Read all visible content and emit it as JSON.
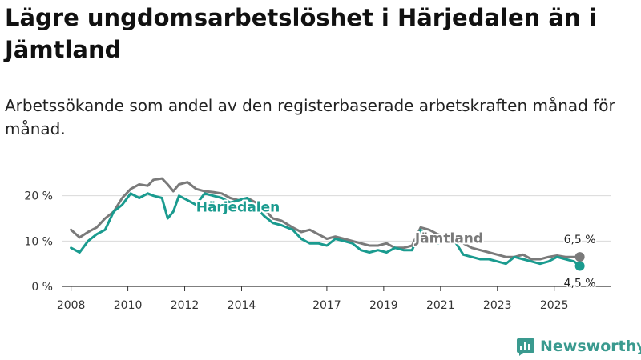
{
  "header": {
    "title": "Lägre ungdomsarbetslöshet i Härjedalen än i Jämtland",
    "subtitle": "Arbetssökande som andel av den registerbaserade arbetskraften månad för månad."
  },
  "brand": {
    "name": "Newsworthy",
    "color": "#3a9a8f"
  },
  "chart_data": {
    "type": "line",
    "title": "Lägre ungdomsarbetslöshet i Härjedalen än i Jämtland",
    "xlabel": "",
    "ylabel": "",
    "xlim": [
      2007.7,
      2026.7
    ],
    "ylim": [
      0,
      24
    ],
    "grid": true,
    "y_ticks": [
      {
        "value": 0,
        "label": "0 %"
      },
      {
        "value": 10,
        "label": "10 %"
      },
      {
        "value": 20,
        "label": "20 %"
      }
    ],
    "x_ticks": [
      {
        "value": 2008,
        "label": "2008"
      },
      {
        "value": 2010,
        "label": "2010"
      },
      {
        "value": 2012,
        "label": "2012"
      },
      {
        "value": 2014,
        "label": "2014"
      },
      {
        "value": 2017,
        "label": "2017"
      },
      {
        "value": 2019,
        "label": "2019"
      },
      {
        "value": 2021,
        "label": "2021"
      },
      {
        "value": 2023,
        "label": "2023"
      },
      {
        "value": 2025,
        "label": "2025"
      }
    ],
    "series": [
      {
        "name": "Jämtland",
        "color": "#7a7a7a",
        "label_at": {
          "x": 2020.1,
          "y": 9.6
        },
        "end_label": "6,5 %",
        "x": [
          2008.0,
          2008.3,
          2008.6,
          2008.9,
          2009.2,
          2009.5,
          2009.8,
          2010.1,
          2010.4,
          2010.7,
          2010.9,
          2011.2,
          2011.4,
          2011.6,
          2011.8,
          2012.1,
          2012.4,
          2012.7,
          2013.0,
          2013.3,
          2013.6,
          2013.9,
          2014.2,
          2014.5,
          2014.8,
          2015.1,
          2015.4,
          2015.8,
          2016.1,
          2016.4,
          2016.7,
          2017.0,
          2017.3,
          2017.6,
          2017.9,
          2018.2,
          2018.5,
          2018.8,
          2019.1,
          2019.4,
          2019.7,
          2020.0,
          2020.3,
          2020.6,
          2020.9,
          2021.2,
          2021.5,
          2021.8,
          2022.1,
          2022.4,
          2022.7,
          2023.0,
          2023.3,
          2023.6,
          2023.9,
          2024.2,
          2024.5,
          2024.8,
          2025.1,
          2025.4,
          2025.7,
          2025.9
        ],
        "values": [
          12.5,
          10.8,
          12.0,
          13.0,
          15.0,
          16.5,
          19.5,
          21.5,
          22.5,
          22.2,
          23.5,
          23.8,
          22.5,
          21.0,
          22.5,
          23.0,
          21.5,
          21.0,
          20.8,
          20.5,
          19.5,
          19.0,
          19.5,
          18.5,
          17.0,
          15.0,
          14.5,
          13.0,
          12.0,
          12.5,
          11.5,
          10.5,
          11.0,
          10.5,
          10.0,
          9.5,
          9.0,
          9.0,
          9.5,
          8.5,
          8.5,
          9.0,
          13.0,
          12.5,
          11.5,
          11.0,
          10.5,
          9.5,
          8.5,
          8.0,
          7.5,
          7.0,
          6.5,
          6.5,
          7.0,
          6.0,
          6.0,
          6.5,
          6.8,
          6.5,
          6.5,
          6.5
        ]
      },
      {
        "name": "Härjedalen",
        "color": "#1a9b8f",
        "label_at": {
          "x": 2012.4,
          "y": 16.5
        },
        "end_label": "4,5 %",
        "x": [
          2008.0,
          2008.3,
          2008.6,
          2008.9,
          2009.2,
          2009.5,
          2009.8,
          2010.1,
          2010.4,
          2010.7,
          2010.9,
          2011.2,
          2011.4,
          2011.6,
          2011.8,
          2012.1,
          2012.4,
          2012.7,
          2013.0,
          2013.3,
          2013.6,
          2013.9,
          2014.2,
          2014.5,
          2014.8,
          2015.1,
          2015.4,
          2015.8,
          2016.1,
          2016.4,
          2016.7,
          2017.0,
          2017.3,
          2017.6,
          2017.9,
          2018.2,
          2018.5,
          2018.8,
          2019.1,
          2019.4,
          2019.7,
          2020.0,
          2020.3,
          2020.6,
          2020.9,
          2021.2,
          2021.5,
          2021.8,
          2022.1,
          2022.4,
          2022.7,
          2023.0,
          2023.3,
          2023.6,
          2023.9,
          2024.2,
          2024.5,
          2024.8,
          2025.1,
          2025.4,
          2025.7,
          2025.9
        ],
        "values": [
          8.5,
          7.5,
          10.0,
          11.5,
          12.5,
          16.5,
          18.0,
          20.5,
          19.5,
          20.5,
          20.0,
          19.5,
          15.0,
          16.5,
          20.0,
          19.0,
          18.0,
          20.5,
          20.0,
          19.5,
          18.5,
          19.0,
          19.5,
          17.5,
          15.5,
          14.0,
          13.5,
          12.5,
          10.5,
          9.5,
          9.5,
          9.0,
          10.5,
          10.0,
          9.5,
          8.0,
          7.5,
          8.0,
          7.5,
          8.5,
          8.0,
          8.0,
          12.5,
          10.0,
          9.5,
          10.0,
          10.0,
          7.0,
          6.5,
          6.0,
          6.0,
          5.5,
          5.0,
          6.5,
          6.0,
          5.5,
          5.0,
          5.5,
          6.5,
          6.0,
          5.5,
          4.5
        ]
      }
    ]
  }
}
